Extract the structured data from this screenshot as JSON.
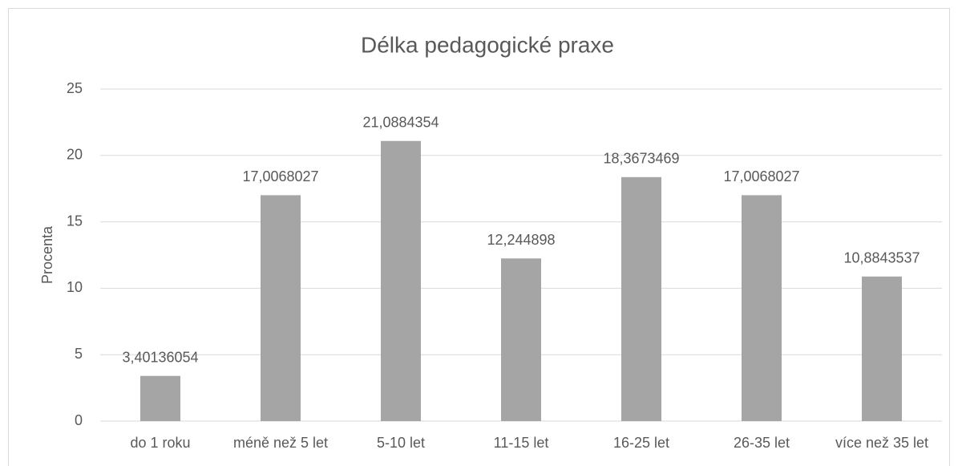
{
  "chart_data": {
    "type": "bar",
    "title": "Délka pedagogické praxe",
    "y_label": "Procenta",
    "categories": [
      "do 1 roku",
      "méně než 5 let",
      "5-10 let",
      "11-15 let",
      "16-25 let",
      "26-35 let",
      "více než 35 let"
    ],
    "values": [
      3.40136054,
      17.0068027,
      21.0884354,
      12.244898,
      18.3673469,
      17.0068027,
      10.8843537
    ],
    "value_labels": [
      "3,40136054",
      "17,0068027",
      "21,0884354",
      "12,244898",
      "18,3673469",
      "17,0068027",
      "10,8843537"
    ],
    "color": "#a5a5a5",
    "ylim": [
      0,
      25
    ],
    "yticks": [
      0,
      5,
      10,
      15,
      20,
      25
    ],
    "grid": true
  }
}
